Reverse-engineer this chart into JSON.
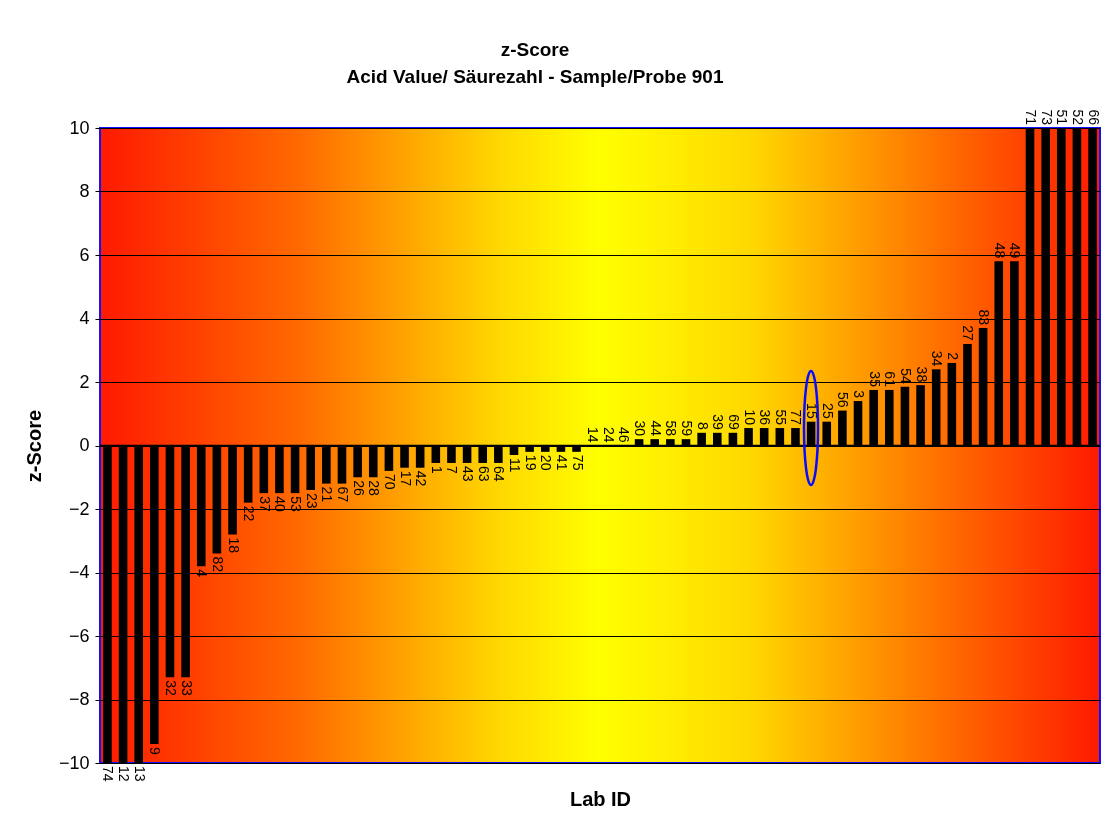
{
  "chart_data": {
    "type": "bar",
    "title": "z-Score",
    "subtitle": "Acid Value/ Säurezahl - Sample/Probe  901",
    "xlabel": "Lab ID",
    "ylabel": "z-Score",
    "categories": [
      "74",
      "12",
      "13",
      "9",
      "32",
      "33",
      "4",
      "82",
      "18",
      "22",
      "37",
      "40",
      "53",
      "23",
      "21",
      "67",
      "26",
      "28",
      "70",
      "17",
      "42",
      "1",
      "7",
      "43",
      "63",
      "64",
      "11",
      "19",
      "20",
      "41",
      "75",
      "14",
      "24",
      "46",
      "30",
      "44",
      "58",
      "59",
      "8",
      "39",
      "69",
      "10",
      "36",
      "55",
      "77",
      "15",
      "25",
      "56",
      "3",
      "35",
      "61",
      "54",
      "38",
      "34",
      "2",
      "27",
      "83",
      "48",
      "49",
      "71",
      "73",
      "51",
      "52",
      "66"
    ],
    "values": [
      -10,
      -10,
      -10,
      -9.4,
      -7.3,
      -7.3,
      -3.8,
      -3.4,
      -2.8,
      -1.8,
      -1.5,
      -1.5,
      -1.5,
      -1.4,
      -1.2,
      -1.2,
      -1.0,
      -1.0,
      -0.8,
      -0.7,
      -0.7,
      -0.55,
      -0.55,
      -0.55,
      -0.55,
      -0.55,
      -0.3,
      -0.2,
      -0.2,
      -0.2,
      -0.2,
      0,
      0,
      0,
      0.2,
      0.2,
      0.2,
      0.2,
      0.4,
      0.4,
      0.4,
      0.55,
      0.55,
      0.55,
      0.55,
      0.75,
      0.75,
      1.1,
      1.4,
      1.75,
      1.75,
      1.85,
      1.9,
      2.4,
      2.6,
      3.2,
      3.7,
      5.8,
      5.8,
      10,
      10,
      10,
      10,
      10
    ],
    "color": "#000000",
    "ylim": [
      -10,
      10
    ],
    "yticks": [
      -10,
      -8,
      -6,
      -4,
      -2,
      0,
      2,
      4,
      6,
      8,
      10
    ],
    "grid": "y",
    "tick_labels": "y"
  }
}
